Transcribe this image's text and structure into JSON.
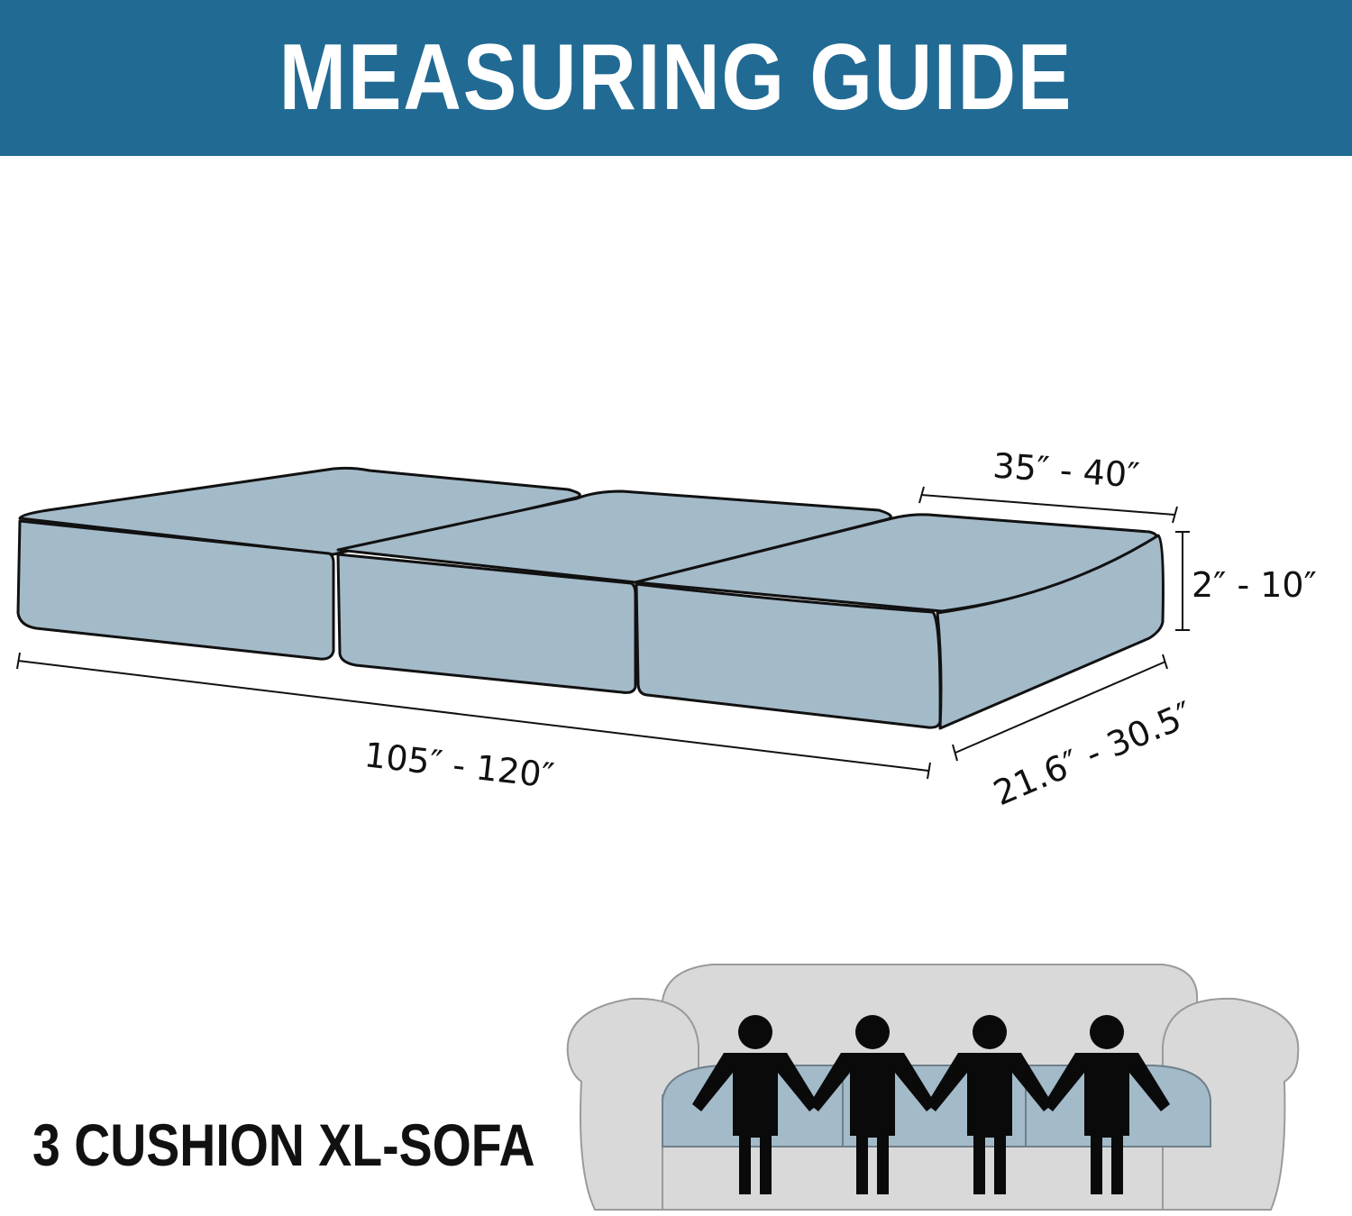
{
  "header": {
    "title": "MEASURING GUIDE"
  },
  "dimensions": {
    "total_length": "105″ - 120″",
    "cushion_width": "35″ - 40″",
    "cushion_thickness": "2″ - 10″",
    "cushion_depth": "21.6″ - 30.5″"
  },
  "sofa": {
    "label": "3 CUSHION XL-SOFA",
    "seated_figures": 4
  },
  "colors": {
    "banner": "#216a93",
    "cushion": "#a3bac9",
    "sofa": "#d9d9d9",
    "outline": "#111111"
  }
}
